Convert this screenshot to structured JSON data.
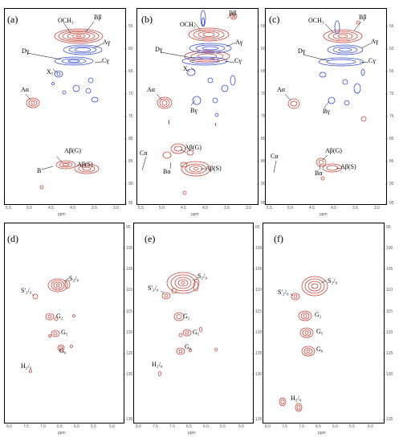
{
  "colors": {
    "red": "#c8463c",
    "blue": "#3a4fd0",
    "axis": "#555555"
  },
  "panels": [
    {
      "id": "a",
      "label": "(a)",
      "xaxis": {
        "unit": "ppm",
        "ticks": [
          "5.5",
          "5.0",
          "4.5",
          "4.0",
          "3.5",
          "3.0"
        ]
      },
      "yaxis": {
        "ticks": [
          "55",
          "60",
          "65",
          "70",
          "75",
          "80",
          "85",
          "90",
          "95"
        ]
      },
      "annotations": [
        "OCH₃",
        "Bβ",
        "Aγ",
        "Dγ",
        "Cγ",
        "X₅",
        "Aα",
        "Aβ(G)",
        "Aβ(S)",
        "B"
      ]
    },
    {
      "id": "b",
      "label": "(b)",
      "xaxis": {
        "unit": "ppm",
        "ticks": [
          "5.5",
          "5.0",
          "4.5",
          "4.0",
          "3.5",
          "3.0"
        ]
      },
      "yaxis": {
        "ticks": [
          "55",
          "60",
          "65",
          "70",
          "75",
          "80",
          "85",
          "90",
          "95"
        ]
      },
      "annotations": [
        "OCH₃",
        "Bβ",
        "Aγ",
        "Dγ",
        "Cγ",
        "X₅",
        "Aα",
        "Bγ",
        "Cα",
        "Aβ(G)",
        "Aβ(S)",
        "Bα"
      ]
    },
    {
      "id": "c",
      "label": "(c)",
      "xaxis": {
        "unit": "ppm",
        "ticks": [
          "5.5",
          "5.0",
          "4.5",
          "4.0",
          "3.5",
          "3.0"
        ]
      },
      "yaxis": {
        "ticks": [
          "55",
          "60",
          "65",
          "70",
          "75",
          "80",
          "85",
          "90",
          "95"
        ]
      },
      "annotations": [
        "OCH₃",
        "Bβ",
        "Aγ",
        "Dγ",
        "Cγ",
        "Aα",
        "Bγ",
        "Cα",
        "Aβ(G)",
        "Aβ(S)",
        "Bα"
      ]
    },
    {
      "id": "d",
      "label": "(d)",
      "xaxis": {
        "unit": "ppm",
        "ticks": [
          "8.0",
          "7.5",
          "7.0",
          "6.5",
          "6.0",
          "5.5",
          "5.0"
        ]
      },
      "yaxis": {
        "ticks": [
          "95",
          "100",
          "105",
          "110",
          "115",
          "120",
          "125",
          "130",
          "135"
        ]
      },
      "annotations": [
        "S₂/₆",
        "S'₂/₆",
        "G₂",
        "G₅",
        "G₆",
        "H₂/₆"
      ]
    },
    {
      "id": "e",
      "label": "(e)",
      "xaxis": {
        "unit": "ppm",
        "ticks": [
          "8.0",
          "7.5",
          "7.0",
          "6.5",
          "6.0",
          "5.5",
          "5.0"
        ]
      },
      "yaxis": {
        "ticks": [
          "95",
          "100",
          "105",
          "110",
          "115",
          "120",
          "125",
          "130",
          "135"
        ]
      },
      "annotations": [
        "S₂/₆",
        "S'₂/₆",
        "G₂",
        "G₅",
        "G₆",
        "H₂/₆"
      ]
    },
    {
      "id": "f",
      "label": "(f)",
      "xaxis": {
        "unit": "ppm",
        "ticks": [
          "8.0",
          "7.5",
          "7.0",
          "6.5",
          "6.0",
          "5.5",
          "5.0"
        ]
      },
      "yaxis": {
        "ticks": [
          "95",
          "100",
          "105",
          "110",
          "115",
          "120",
          "125",
          "130",
          "135"
        ]
      },
      "annotations": [
        "S₂/₆",
        "S'₂/₆",
        "G₂",
        "G₅",
        "G₆",
        "H₂/₆"
      ]
    }
  ]
}
